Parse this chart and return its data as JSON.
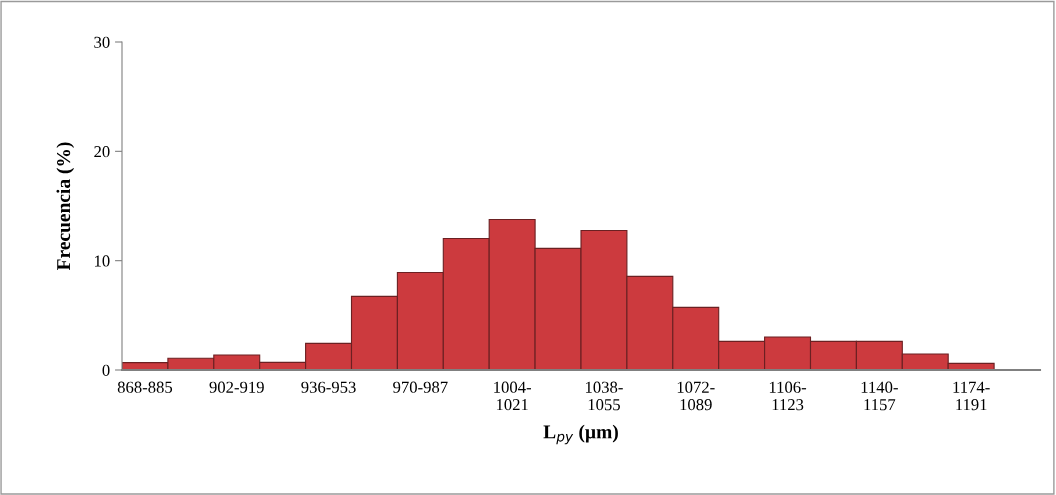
{
  "chart_data": {
    "type": "bar",
    "categories": [
      "868-885",
      null,
      "902-919",
      null,
      "936-953",
      null,
      "970-987",
      null,
      "1004-\n1021",
      null,
      "1038-\n1055",
      null,
      "1072-\n1089",
      null,
      "1106-\n1123",
      null,
      "1140-\n1157",
      null,
      "1174-\n1191",
      null
    ],
    "values": [
      0.67,
      1.07,
      1.37,
      0.7,
      2.44,
      6.73,
      8.92,
      12.03,
      13.77,
      11.12,
      12.76,
      8.56,
      5.73,
      2.62,
      3.02,
      2.62,
      2.62,
      1.46,
      0.61,
      null
    ],
    "color": "#cc3a3e",
    "xlabel": "L$_{py}$ (µm)",
    "ylabel": "Frecuencia (%)",
    "ylim": [
      0,
      30
    ],
    "yticks": [
      0,
      10,
      20,
      30
    ],
    "grid": false,
    "legend": false
  }
}
